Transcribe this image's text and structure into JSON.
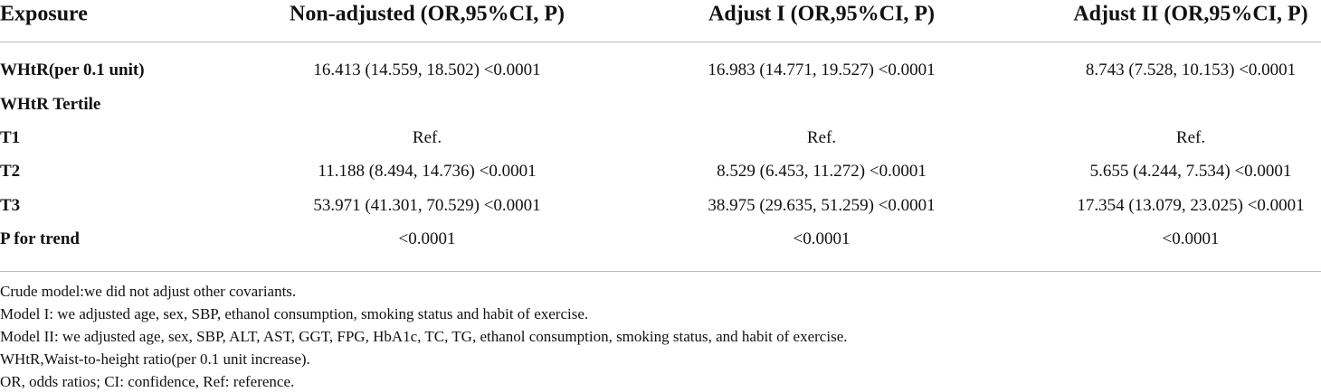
{
  "table": {
    "header": [
      "Exposure",
      "Non-adjusted (OR,95%CI, P)",
      "Adjust I (OR,95%CI, P)",
      "Adjust II (OR,95%CI, P)"
    ],
    "rows": [
      [
        "WHtR(per 0.1 unit)",
        "16.413 (14.559, 18.502) <0.0001",
        "16.983 (14.771, 19.527) <0.0001",
        "8.743 (7.528, 10.153) <0.0001"
      ],
      [
        "WHtR Tertile",
        "",
        "",
        ""
      ],
      [
        "T1",
        "Ref.",
        "Ref.",
        "Ref."
      ],
      [
        "T2",
        "11.188 (8.494, 14.736) <0.0001",
        "8.529 (6.453, 11.272) <0.0001",
        "5.655 (4.244, 7.534) <0.0001"
      ],
      [
        "T3",
        "53.971 (41.301, 70.529) <0.0001",
        "38.975 (29.635, 51.259) <0.0001",
        "17.354 (13.079, 23.025) <0.0001"
      ],
      [
        "P for trend",
        "<0.0001",
        "<0.0001",
        "<0.0001"
      ]
    ],
    "notes": [
      "Crude model:we did not adjust other covariants.",
      "Model I: we adjusted age, sex, SBP, ethanol consumption, smoking status and habit of exercise.",
      "Model II: we adjusted age, sex, SBP, ALT, AST, GGT, FPG, HbA1c, TC, TG, ethanol consumption, smoking status, and habit of exercise.",
      "WHtR,Waist-to-height ratio(per 0.1 unit increase).",
      "OR, odds ratios; CI: confidence, Ref: reference."
    ]
  }
}
